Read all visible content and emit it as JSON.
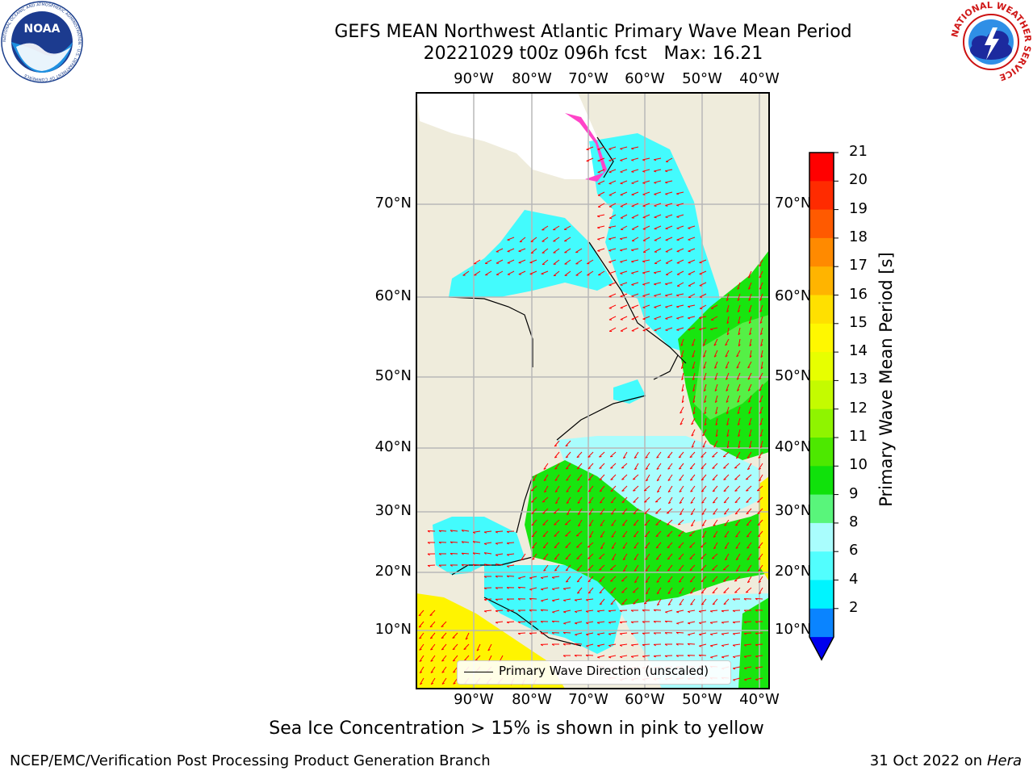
{
  "title": {
    "line1": "GEFS MEAN Northwest Atlantic Primary Wave Mean Period",
    "line2": "20221029 t00z 096h fcst   Max: 16.21"
  },
  "map": {
    "lon_labels": [
      "90°W",
      "80°W",
      "70°W",
      "60°W",
      "50°W",
      "40°W"
    ],
    "lat_labels": [
      "70°N",
      "60°N",
      "50°N",
      "40°N",
      "30°N",
      "20°N",
      "10°N"
    ],
    "legend_label": "Primary Wave Direction (unscaled)",
    "colors": {
      "land": "#efecdc",
      "ocean_cyan": "#43fbfd",
      "ocean_lightcyan": "#a9fdfd",
      "ocean_green": "#18e50f",
      "ocean_lightgreen": "#55f046",
      "ocean_yellow": "#fff400",
      "ice_pink": "#ff44c8",
      "arrow": "#ff0000",
      "grid": "#b8b8b8"
    }
  },
  "colorbar": {
    "label": "Primary Wave Mean Period [s]",
    "ticks": [
      "21",
      "20",
      "19",
      "18",
      "17",
      "16",
      "15",
      "14",
      "13",
      "12",
      "11",
      "10",
      "9",
      "8",
      "6",
      "4",
      "2"
    ],
    "colors": [
      "#ff0000",
      "#ff2b00",
      "#ff5a00",
      "#ff8a00",
      "#ffb400",
      "#ffe000",
      "#fff800",
      "#e7ff00",
      "#c4fb00",
      "#8ff400",
      "#4de800",
      "#10e10b",
      "#59f57b",
      "#a9fdfd",
      "#52fefe",
      "#00f4ff",
      "#0a84ff"
    ],
    "extend_color": "#0000ee"
  },
  "caption": "Sea Ice Concentration > 15% is shown in pink to yellow",
  "footer": {
    "left": "NCEP/EMC/Verification Post Processing Product Generation Branch",
    "right_prefix": "31 Oct 2022 on ",
    "right_italic": "Hera"
  },
  "logos": {
    "noaa": {
      "center": "NOAA",
      "ring": "NATIONAL OCEANIC AND ATMOSPHERIC ADMINISTRATION · U.S. DEPARTMENT OF COMMERCE"
    },
    "nws": {
      "ring": "NATIONAL WEATHER SERVICE"
    }
  }
}
